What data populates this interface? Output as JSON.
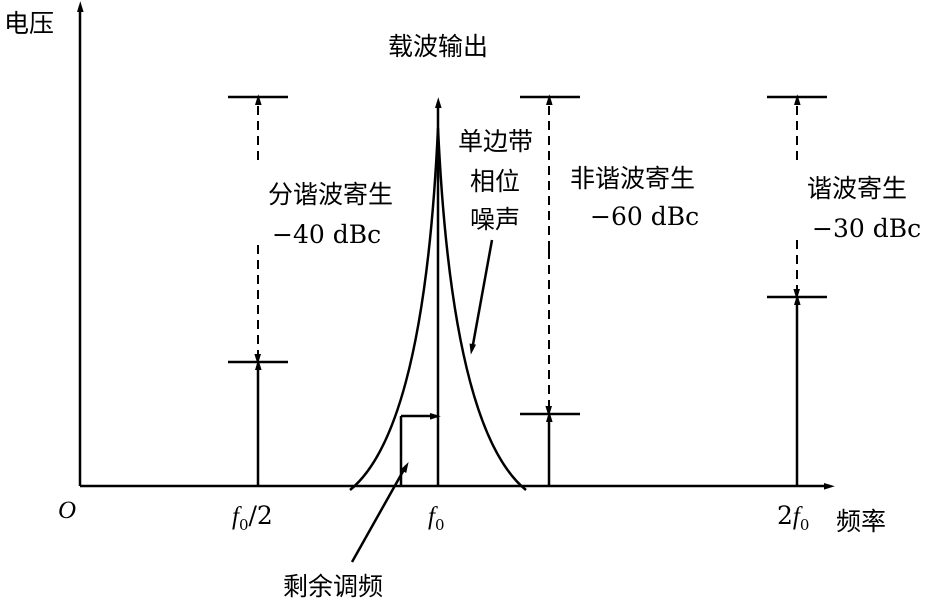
{
  "axes": {
    "y_label": "电压",
    "x_label": "频率",
    "origin": "O"
  },
  "x_ticks": [
    {
      "italic": "f",
      "sub": "0",
      "rest": "/2"
    },
    {
      "italic": "f",
      "sub": "0"
    },
    {
      "pre": "2",
      "italic": "f",
      "sub": "0"
    }
  ],
  "carrier": {
    "label": "载波输出"
  },
  "phase_noise": {
    "lines": [
      "单边带",
      "相位",
      "噪声"
    ]
  },
  "residual_fm": {
    "label": "剩余调频"
  },
  "spurs": [
    {
      "name": "分谐波寄生",
      "level": "−40 dBc"
    },
    {
      "name": "非谐波寄生",
      "level": "−60 dBc"
    },
    {
      "name": "谐波寄生",
      "level": "−30 dBc"
    }
  ]
}
